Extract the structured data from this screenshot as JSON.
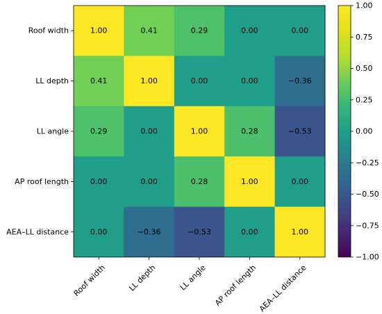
{
  "chart_data": {
    "type": "heatmap",
    "title": "",
    "xlabel": "",
    "ylabel": "",
    "row_labels": [
      "Roof width",
      "LL depth",
      "LL angle",
      "AP roof length",
      "AEA–LL distance"
    ],
    "col_labels": [
      "Roof width",
      "LL depth",
      "LL angle",
      "AP roof length",
      "AEA–LL distance"
    ],
    "values": [
      [
        1.0,
        0.41,
        0.29,
        0.0,
        0.0
      ],
      [
        0.41,
        1.0,
        0.0,
        0.0,
        -0.36
      ],
      [
        0.29,
        0.0,
        1.0,
        0.28,
        -0.53
      ],
      [
        0.0,
        0.0,
        0.28,
        1.0,
        0.0
      ],
      [
        0.0,
        -0.36,
        -0.53,
        0.0,
        1.0
      ]
    ],
    "cell_labels": [
      [
        "1.00",
        "0.41",
        "0.29",
        "0.00",
        "0.00"
      ],
      [
        "0.41",
        "1.00",
        "0.00",
        "0.00",
        "−0.36"
      ],
      [
        "0.29",
        "0.00",
        "1.00",
        "0.28",
        "−0.53"
      ],
      [
        "0.00",
        "0.00",
        "0.28",
        "1.00",
        "0.00"
      ],
      [
        "0.00",
        "−0.36",
        "−0.53",
        "0.00",
        "1.00"
      ]
    ],
    "colormap": "viridis",
    "vmin": -1.0,
    "vmax": 1.0,
    "colorbar": {
      "ticks": [
        1.0,
        0.75,
        0.5,
        0.25,
        0.0,
        -0.25,
        -0.5,
        -0.75,
        -1.0
      ],
      "tick_labels": [
        "1.00",
        "0.75",
        "0.50",
        "0.25",
        "0.00",
        "−0.25",
        "−0.50",
        "−0.75",
        "−1.00"
      ],
      "placement": "right"
    }
  }
}
